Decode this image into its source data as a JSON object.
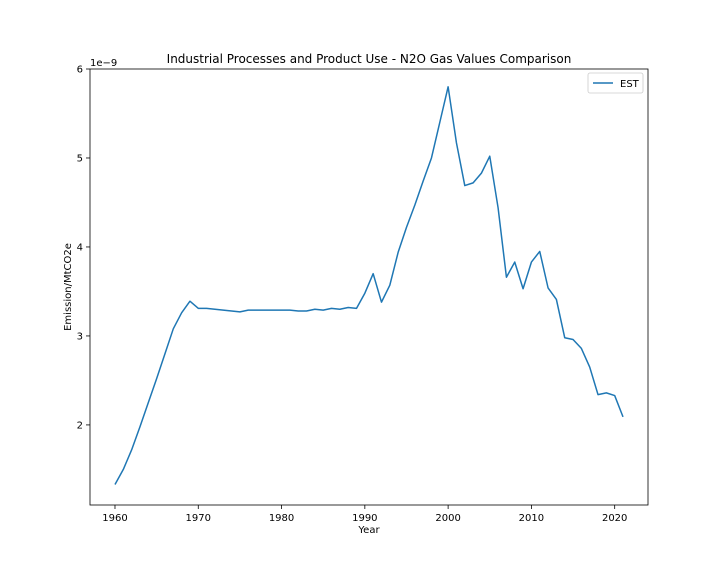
{
  "chart_data": {
    "type": "line",
    "title": "Industrial Processes and Product Use - N2O Gas Values Comparison",
    "xlabel": "Year",
    "ylabel": "Emission/MtCO2e",
    "y_offset_label": "1e−9",
    "xlim": [
      1957,
      2024
    ],
    "ylim": [
      1.1,
      6.0
    ],
    "x_ticks": [
      1960,
      1970,
      1980,
      1990,
      2000,
      2010,
      2020
    ],
    "y_ticks": [
      2,
      3,
      4,
      5,
      6
    ],
    "grid": false,
    "legend_position": "top-right",
    "series": [
      {
        "name": "EST",
        "color": "#1f77b4",
        "x": [
          1960,
          1961,
          1962,
          1963,
          1964,
          1965,
          1966,
          1967,
          1968,
          1969,
          1970,
          1971,
          1972,
          1973,
          1974,
          1975,
          1976,
          1977,
          1978,
          1979,
          1980,
          1981,
          1982,
          1983,
          1984,
          1985,
          1986,
          1987,
          1988,
          1989,
          1990,
          1991,
          1992,
          1993,
          1994,
          1995,
          1996,
          1997,
          1998,
          1999,
          2000,
          2001,
          2002,
          2003,
          2004,
          2005,
          2006,
          2007,
          2008,
          2009,
          2010,
          2011,
          2012,
          2013,
          2014,
          2015,
          2016,
          2017,
          2018,
          2019,
          2020,
          2021
        ],
        "values": [
          1.33,
          1.5,
          1.72,
          1.98,
          2.25,
          2.52,
          2.8,
          3.08,
          3.26,
          3.39,
          3.31,
          3.31,
          3.3,
          3.29,
          3.28,
          3.27,
          3.29,
          3.29,
          3.29,
          3.29,
          3.29,
          3.29,
          3.28,
          3.28,
          3.3,
          3.29,
          3.31,
          3.3,
          3.32,
          3.31,
          3.48,
          3.7,
          3.38,
          3.57,
          3.94,
          4.22,
          4.47,
          4.74,
          5.0,
          5.4,
          5.8,
          5.17,
          4.69,
          4.72,
          4.83,
          5.02,
          4.44,
          3.66,
          3.83,
          3.53,
          3.83,
          3.95,
          3.54,
          3.41,
          2.98,
          2.96,
          2.86,
          2.65,
          2.34,
          2.36,
          2.33,
          2.09
        ]
      }
    ]
  }
}
